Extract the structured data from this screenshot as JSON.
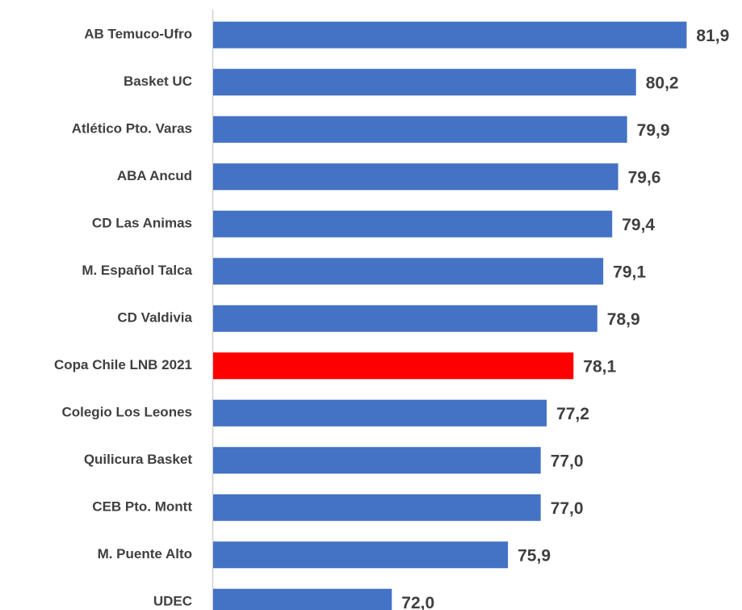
{
  "chart_data": {
    "type": "bar",
    "orientation": "horizontal",
    "categories": [
      "AB Temuco-Ufro",
      "Basket UC",
      "Atlético Pto. Varas",
      "ABA Ancud",
      "CD Las Animas",
      "M. Español Talca",
      "CD Valdivia",
      "Copa Chile LNB 2021",
      "Colegio Los Leones",
      "Quilicura Basket",
      "CEB Pto. Montt",
      "M. Puente Alto",
      "UDEC"
    ],
    "values": [
      81.9,
      80.2,
      79.9,
      79.6,
      79.4,
      79.1,
      78.9,
      78.1,
      77.2,
      77.0,
      77.0,
      75.9,
      72.0
    ],
    "value_labels": [
      "81,9",
      "80,2",
      "79,9",
      "79,6",
      "79,4",
      "79,1",
      "78,9",
      "78,1",
      "77,2",
      "77,0",
      "77,0",
      "75,9",
      "72,0"
    ],
    "colors": [
      "#4472c4",
      "#4472c4",
      "#4472c4",
      "#4472c4",
      "#4472c4",
      "#4472c4",
      "#4472c4",
      "#ff0000",
      "#4472c4",
      "#4472c4",
      "#4472c4",
      "#4472c4",
      "#4472c4"
    ],
    "xlim": [
      66,
      83
    ]
  }
}
